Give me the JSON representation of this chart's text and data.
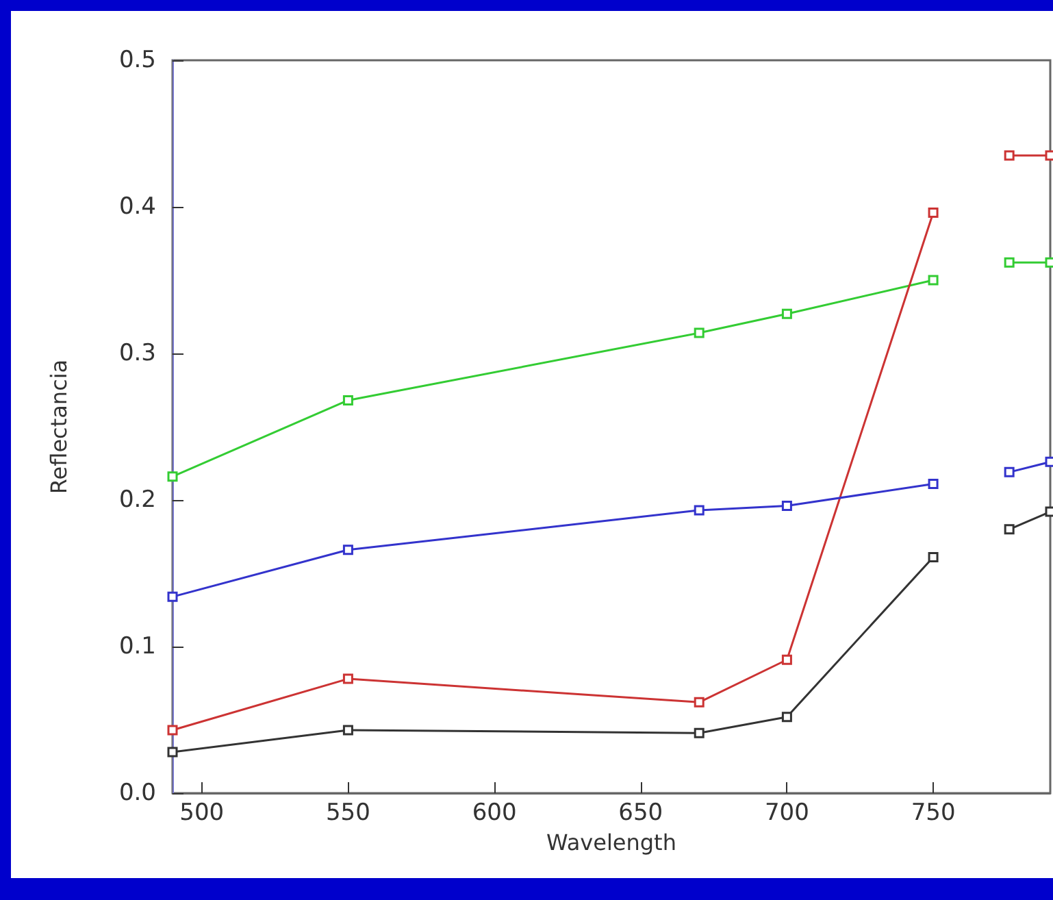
{
  "chart_data": {
    "type": "line",
    "xlabel": "Wavelength",
    "ylabel": "Reflectancia",
    "xlim": [
      490,
      790
    ],
    "xticks": [
      500,
      550,
      600,
      650,
      700,
      750
    ],
    "ylim": [
      0,
      0.5
    ],
    "yticks": [
      {
        "value": 0,
        "label": "0.0"
      },
      0.1,
      0.2,
      0.3,
      0.4,
      0.5
    ],
    "marker": "square",
    "grid": false,
    "series": [
      {
        "color": "#33cc33",
        "x": [
          490,
          550,
          670,
          700,
          750,
          760,
          776,
          790
        ],
        "values": [
          0.216,
          0.268,
          0.314,
          0.327,
          0.35,
          null,
          0.362,
          0.362
        ]
      },
      {
        "color": "#cc3333",
        "x": [
          490,
          550,
          670,
          700,
          750,
          760,
          776,
          790
        ],
        "values": [
          0.043,
          0.078,
          0.062,
          0.091,
          0.396,
          null,
          0.435,
          0.435
        ]
      },
      {
        "color": "#3333cc",
        "x": [
          490,
          550,
          670,
          700,
          750,
          760,
          776,
          790
        ],
        "values": [
          0.134,
          0.166,
          0.193,
          0.196,
          0.211,
          null,
          0.219,
          0.226
        ]
      },
      {
        "color": "#333333",
        "x": [
          490,
          550,
          670,
          700,
          750,
          760,
          776,
          790
        ],
        "values": [
          0.028,
          0.043,
          0.041,
          0.052,
          0.161,
          null,
          0.18,
          0.192
        ]
      }
    ]
  }
}
